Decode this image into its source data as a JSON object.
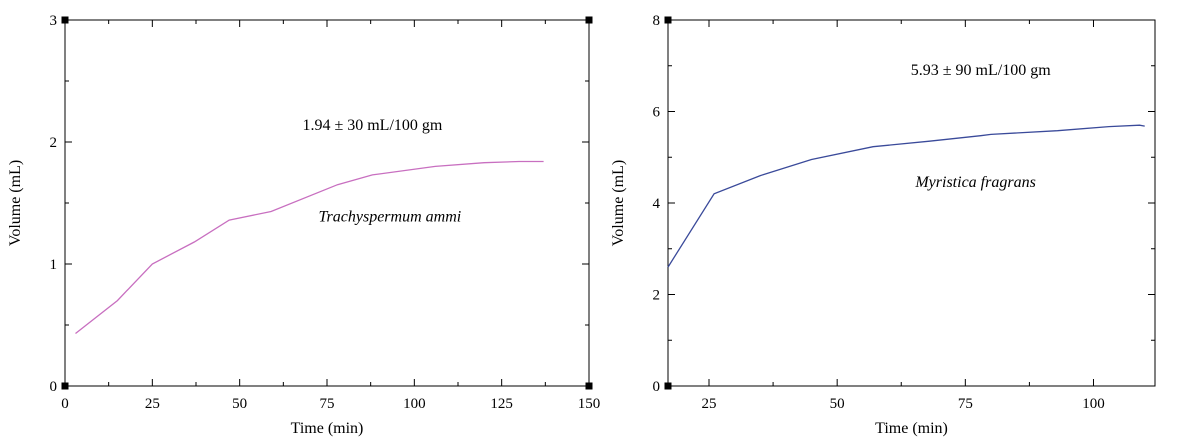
{
  "chart_data": [
    {
      "type": "line",
      "xlabel": "Time (min)",
      "ylabel": "Volume (mL)",
      "xlim": [
        0,
        150
      ],
      "ylim": [
        0,
        3
      ],
      "xticks": [
        0,
        25,
        50,
        75,
        100,
        125,
        150
      ],
      "yticks": [
        0,
        1,
        2,
        3
      ],
      "grid": false,
      "line_color": "#c86fc0",
      "series": [
        {
          "x": [
            3,
            15,
            25,
            37,
            47,
            59,
            78,
            88,
            106,
            120,
            130,
            137
          ],
          "y": [
            0.43,
            0.7,
            1.0,
            1.18,
            1.36,
            1.43,
            1.65,
            1.73,
            1.8,
            1.83,
            1.84,
            1.84
          ]
        }
      ],
      "annotations": [
        {
          "text": "1.94 ± 30 mL/100 gm",
          "x": 88,
          "y": 2.1,
          "italic": false
        },
        {
          "text": "Trachyspermum ammi",
          "x": 93,
          "y": 1.35,
          "italic": true
        }
      ]
    },
    {
      "type": "line",
      "xlabel": "Time (min)",
      "ylabel": "Volume (mL)",
      "xlim": [
        17,
        112
      ],
      "ylim": [
        0,
        8
      ],
      "xticks": [
        25,
        50,
        75,
        100
      ],
      "yticks": [
        0,
        2,
        4,
        6,
        8
      ],
      "grid": false,
      "line_color": "#3a4a9a",
      "series": [
        {
          "x": [
            17,
            26,
            35,
            45,
            57,
            68,
            78,
            80,
            93,
            103,
            109,
            110
          ],
          "y": [
            2.6,
            4.2,
            4.6,
            4.95,
            5.23,
            5.35,
            5.47,
            5.5,
            5.58,
            5.67,
            5.7,
            5.68
          ]
        }
      ],
      "annotations": [
        {
          "text": "5.93 ± 90 mL/100 gm",
          "x": 78,
          "y": 6.8,
          "italic": false
        },
        {
          "text": "Myristica fragrans",
          "x": 77,
          "y": 4.35,
          "italic": true
        }
      ]
    }
  ]
}
